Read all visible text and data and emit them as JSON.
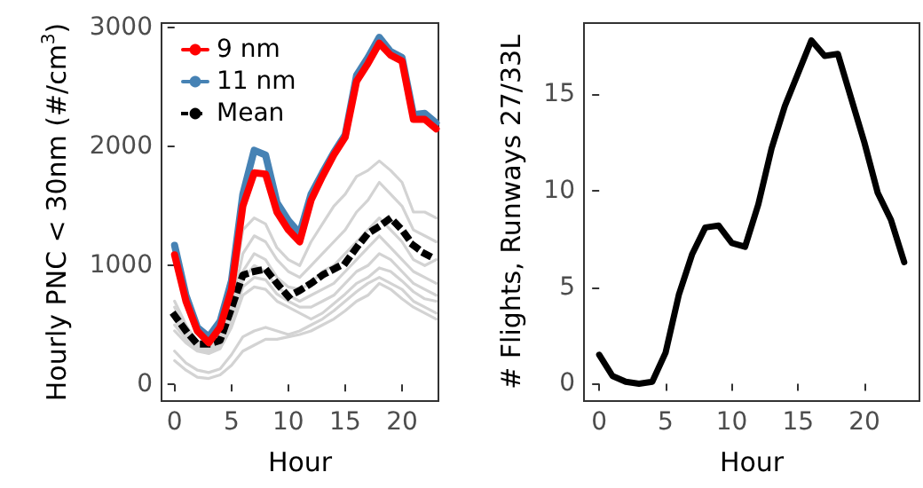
{
  "chart_data": [
    {
      "type": "line",
      "xlabel": "Hour",
      "ylabel": "Hourly PNC < 30nm (#/cm$^{3}$)",
      "x": [
        0,
        1,
        2,
        3,
        4,
        5,
        6,
        7,
        8,
        9,
        10,
        11,
        12,
        13,
        14,
        15,
        16,
        17,
        18,
        19,
        20,
        21,
        22,
        23
      ],
      "xlim": [
        -1.15,
        23.2
      ],
      "xticks": [
        0,
        5,
        10,
        15,
        20
      ],
      "ylim": [
        -140,
        3040
      ],
      "yticks": [
        0,
        1000,
        2000,
        3000
      ],
      "grid": false,
      "legend": "top left",
      "marker": "none",
      "series": [
        {
          "color": "#d3d3d3",
          "values": [
            700,
            500,
            350,
            330,
            400,
            700,
            1300,
            1400,
            1350,
            1150,
            1050,
            1000,
            1200,
            1350,
            1500,
            1600,
            1750,
            1800,
            1880,
            1800,
            1700,
            1450,
            1450,
            1400
          ]
        },
        {
          "color": "#d3d3d3",
          "values": [
            650,
            450,
            330,
            310,
            380,
            650,
            1100,
            1250,
            1200,
            1050,
            950,
            900,
            1000,
            1100,
            1200,
            1300,
            1450,
            1550,
            1700,
            1600,
            1500,
            1300,
            1250,
            1200
          ]
        },
        {
          "color": "#d3d3d3",
          "values": [
            600,
            420,
            320,
            300,
            360,
            600,
            950,
            1100,
            1050,
            900,
            820,
            800,
            850,
            950,
            1000,
            1100,
            1200,
            1300,
            1400,
            1300,
            1200,
            1050,
            1000,
            1050
          ]
        },
        {
          "color": "#d3d3d3",
          "values": [
            550,
            400,
            300,
            280,
            340,
            560,
            880,
            1000,
            950,
            820,
            750,
            700,
            750,
            800,
            850,
            950,
            1050,
            1150,
            1250,
            1150,
            1050,
            950,
            900,
            850
          ]
        },
        {
          "color": "#d3d3d3",
          "values": [
            500,
            380,
            290,
            270,
            320,
            520,
            820,
            900,
            880,
            760,
            700,
            650,
            650,
            700,
            750,
            850,
            950,
            1000,
            1100,
            1050,
            950,
            850,
            800,
            750
          ]
        },
        {
          "color": "#d3d3d3",
          "values": [
            450,
            350,
            280,
            260,
            300,
            480,
            750,
            820,
            800,
            700,
            650,
            600,
            550,
            600,
            680,
            760,
            850,
            900,
            980,
            950,
            870,
            780,
            720,
            700
          ]
        },
        {
          "color": "#d3d3d3",
          "values": [
            280,
            180,
            120,
            100,
            130,
            250,
            400,
            450,
            480,
            450,
            420,
            450,
            500,
            550,
            620,
            700,
            780,
            850,
            900,
            850,
            800,
            700,
            650,
            600
          ]
        },
        {
          "color": "#d3d3d3",
          "values": [
            200,
            120,
            60,
            50,
            80,
            160,
            280,
            330,
            380,
            380,
            400,
            420,
            450,
            500,
            550,
            620,
            700,
            750,
            850,
            800,
            720,
            650,
            600,
            550
          ]
        },
        {
          "name": "9 nm",
          "color": "#ff0000",
          "values": [
            1090,
            700,
            450,
            350,
            480,
            800,
            1500,
            1780,
            1770,
            1450,
            1300,
            1200,
            1550,
            1750,
            1930,
            2080,
            2550,
            2700,
            2870,
            2770,
            2720,
            2230,
            2230,
            2150
          ]
        },
        {
          "name": "11 nm",
          "color": "#4682b4",
          "values": [
            1170,
            750,
            480,
            400,
            530,
            870,
            1600,
            1970,
            1930,
            1530,
            1380,
            1270,
            1600,
            1780,
            1950,
            2100,
            2600,
            2750,
            2920,
            2800,
            2750,
            2270,
            2280,
            2200
          ]
        },
        {
          "name": "Mean",
          "color": "#000000",
          "line_style": "dotted",
          "values": [
            580,
            450,
            340,
            340,
            370,
            640,
            920,
            950,
            970,
            850,
            740,
            790,
            850,
            920,
            970,
            1020,
            1150,
            1270,
            1330,
            1400,
            1300,
            1170,
            1100,
            1050
          ]
        }
      ]
    },
    {
      "type": "line",
      "xlabel": "Hour",
      "ylabel": "# Flights, Runways 27/33L",
      "x": [
        0,
        1,
        2,
        3,
        4,
        5,
        6,
        7,
        8,
        9,
        10,
        11,
        12,
        13,
        14,
        15,
        16,
        17,
        18,
        19,
        20,
        21,
        22,
        23
      ],
      "xlim": [
        -1.15,
        24.15
      ],
      "xticks": [
        0,
        5,
        10,
        15,
        20
      ],
      "ylim": [
        -0.9,
        18.7
      ],
      "yticks": [
        0,
        5,
        10,
        15
      ],
      "grid": false,
      "marker": "none",
      "series": [
        {
          "color": "#000000",
          "values": [
            1.5,
            0.4,
            0.1,
            0.0,
            0.1,
            1.6,
            4.6,
            6.7,
            8.1,
            8.2,
            7.3,
            7.1,
            9.3,
            12.2,
            14.4,
            16.1,
            17.8,
            17.0,
            17.1,
            14.8,
            12.5,
            9.9,
            8.5,
            6.3
          ]
        }
      ]
    }
  ]
}
